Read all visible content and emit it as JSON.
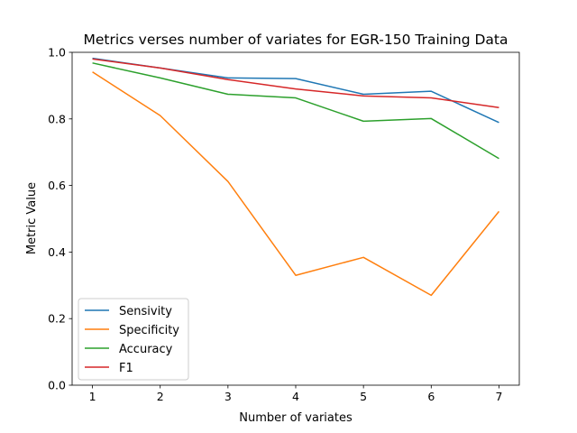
{
  "chart_data": {
    "type": "line",
    "title": "Metrics verses number of variates for EGR-150 Training Data",
    "xlabel": "Number of variates",
    "ylabel": "Metric Value",
    "x": [
      1,
      2,
      3,
      4,
      5,
      6,
      7
    ],
    "xlim": [
      0.7,
      7.3
    ],
    "ylim": [
      0.0,
      1.0
    ],
    "xticks": [
      1,
      2,
      3,
      4,
      5,
      6,
      7
    ],
    "yticks": [
      0.0,
      0.2,
      0.4,
      0.6,
      0.8,
      1.0
    ],
    "ytick_labels": [
      "0.0",
      "0.2",
      "0.4",
      "0.6",
      "0.8",
      "1.0"
    ],
    "grid": false,
    "legend_position": "lower-left",
    "series": [
      {
        "name": "Sensivity",
        "color": "#1f77b4",
        "values": [
          0.982,
          0.953,
          0.923,
          0.921,
          0.874,
          0.883,
          0.789
        ]
      },
      {
        "name": "Specificity",
        "color": "#ff7f0e",
        "values": [
          0.941,
          0.81,
          0.612,
          0.33,
          0.384,
          0.27,
          0.522
        ]
      },
      {
        "name": "Accuracy",
        "color": "#2ca02c",
        "values": [
          0.968,
          0.923,
          0.874,
          0.863,
          0.793,
          0.801,
          0.681
        ]
      },
      {
        "name": "F1",
        "color": "#d62728",
        "values": [
          0.98,
          0.953,
          0.918,
          0.89,
          0.869,
          0.863,
          0.834
        ]
      }
    ]
  }
}
